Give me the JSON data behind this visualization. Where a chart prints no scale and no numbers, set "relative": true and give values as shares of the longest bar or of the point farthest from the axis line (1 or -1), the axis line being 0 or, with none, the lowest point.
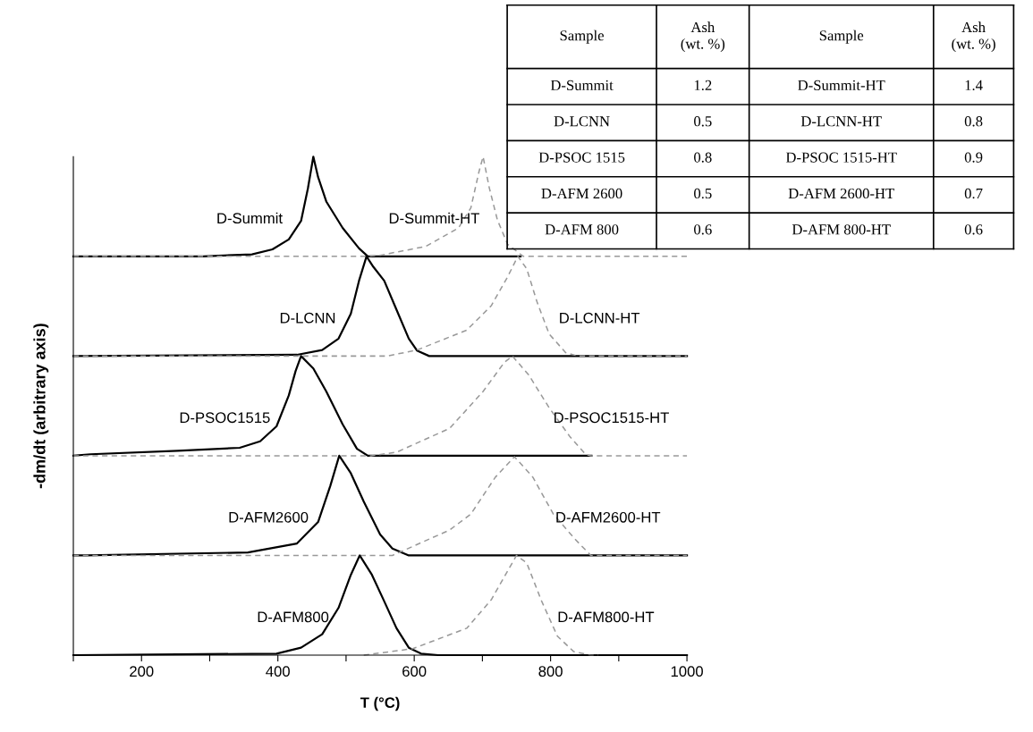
{
  "chart_data": {
    "type": "line",
    "relative": true,
    "xlabel": "T (°C)",
    "ylabel": "-dm/dt (arbitrary axis)",
    "xlim": [
      100,
      1000
    ],
    "xticks": [
      {
        "value": 100,
        "label": null
      },
      200,
      {
        "value": 300,
        "label": null
      },
      400,
      {
        "value": 500,
        "label": null
      },
      600,
      {
        "value": 700,
        "label": null
      },
      800,
      {
        "value": 900,
        "label": null
      },
      1000
    ],
    "tick_labels": "x",
    "grid": false,
    "legend": false,
    "marker": "none",
    "series": [
      {
        "name": "D-Summit",
        "color": "#000000",
        "line_style": "solid",
        "x": [
          100,
          290,
          362,
          392,
          416,
          434,
          444,
          452,
          459,
          471,
          495,
          519,
          532,
          756
        ],
        "values": [
          0.8,
          0.8,
          0.804,
          0.814,
          0.834,
          0.871,
          0.936,
          1,
          0.959,
          0.91,
          0.857,
          0.816,
          0.8,
          0.8
        ]
      },
      {
        "name": "D-Summit-HT",
        "color": "#999999",
        "line_style": "dashed",
        "x": [
          100,
          530,
          550,
          617,
          665,
          683,
          695,
          701,
          710,
          722,
          737,
          760,
          1000
        ],
        "values": [
          0.8,
          0.8,
          0.802,
          0.82,
          0.857,
          0.897,
          0.97,
          1,
          0.938,
          0.873,
          0.824,
          0.8,
          0.8
        ]
      },
      {
        "name": "D-LCNN",
        "color": "#000000",
        "line_style": "solid",
        "x": [
          100,
          428,
          465,
          489,
          507,
          519,
          530,
          540,
          556,
          574,
          592,
          604,
          622,
          1000
        ],
        "values": [
          0.6,
          0.6025,
          0.612,
          0.635,
          0.685,
          0.751,
          0.8,
          0.779,
          0.751,
          0.693,
          0.635,
          0.611,
          0.6,
          0.6
        ]
      },
      {
        "name": "D-LCNN-HT",
        "color": "#999999",
        "line_style": "dashed",
        "x": [
          100,
          560,
          604,
          677,
          713,
          737,
          752,
          765,
          780,
          798,
          822,
          840,
          1000
        ],
        "values": [
          0.6,
          0.6,
          0.612,
          0.652,
          0.701,
          0.759,
          0.8,
          0.775,
          0.709,
          0.644,
          0.607,
          0.6,
          0.6
        ]
      },
      {
        "name": "D-PSOC1515",
        "color": "#000000",
        "line_style": "solid",
        "x": [
          100,
          125,
          253,
          344,
          374,
          398,
          416,
          426,
          434,
          452,
          471,
          495,
          516,
          532,
          860
        ],
        "values": [
          0.4,
          0.403,
          0.41,
          0.416,
          0.429,
          0.459,
          0.521,
          0.57,
          0.6,
          0.575,
          0.529,
          0.463,
          0.414,
          0.4,
          0.4
        ]
      },
      {
        "name": "D-PSOC1515-HT",
        "color": "#999999",
        "line_style": "dashed",
        "x": [
          100,
          537,
          574,
          652,
          701,
          732,
          744,
          768,
          798,
          828,
          852,
          859,
          1000
        ],
        "values": [
          0.4,
          0.4,
          0.407,
          0.455,
          0.529,
          0.587,
          0.6,
          0.562,
          0.496,
          0.439,
          0.402,
          0.4,
          0.4
        ]
      },
      {
        "name": "D-AFM2600",
        "color": "#000000",
        "line_style": "solid",
        "x": [
          100,
          119,
          356,
          428,
          459,
          477,
          490,
          507,
          526,
          550,
          568,
          592,
          1000
        ],
        "values": [
          0.2,
          0.2,
          0.206,
          0.224,
          0.267,
          0.34,
          0.4,
          0.365,
          0.308,
          0.242,
          0.214,
          0.2,
          0.2
        ]
      },
      {
        "name": "D-AFM2600-HT",
        "color": "#999999",
        "line_style": "dashed",
        "x": [
          100,
          568,
          652,
          683,
          719,
          747,
          774,
          804,
          835,
          859,
          1000
        ],
        "values": [
          0.2,
          0.2,
          0.251,
          0.283,
          0.357,
          0.398,
          0.357,
          0.283,
          0.234,
          0.2,
          0.2
        ]
      },
      {
        "name": "D-AFM800",
        "color": "#000000",
        "line_style": "solid",
        "x": [
          100,
          398,
          434,
          465,
          489,
          507,
          520,
          538,
          555,
          574,
          592,
          610,
          635,
          1000
        ],
        "values": [
          0,
          0.003,
          0.015,
          0.042,
          0.095,
          0.161,
          0.2,
          0.161,
          0.111,
          0.054,
          0.015,
          0.003,
          0,
          0
        ]
      },
      {
        "name": "D-AFM800-HT",
        "color": "#999999",
        "line_style": "dashed",
        "x": [
          526,
          598,
          677,
          713,
          737,
          750,
          765,
          786,
          810,
          834,
          859,
          870
        ],
        "values": [
          0,
          0.013,
          0.054,
          0.111,
          0.169,
          0.2,
          0.185,
          0.111,
          0.038,
          0.007,
          0,
          0
        ]
      }
    ],
    "annotations": [
      "Sample",
      "Ash\n(wt. %)",
      "Sample",
      "Ash\n(wt. %)",
      "D-Summit",
      "1.2",
      "D-Summit-HT",
      "1.4",
      "D-LCNN",
      "0.5",
      "D-LCNN-HT",
      "0.8",
      "D-PSOC 1515",
      "0.8",
      "D-PSOC 1515-HT",
      "0.9",
      "D-AFM 2600",
      "0.5",
      "D-AFM 2600-HT",
      "0.7",
      "D-AFM 800",
      "0.6",
      "D-AFM 800-HT",
      "0.6"
    ]
  }
}
